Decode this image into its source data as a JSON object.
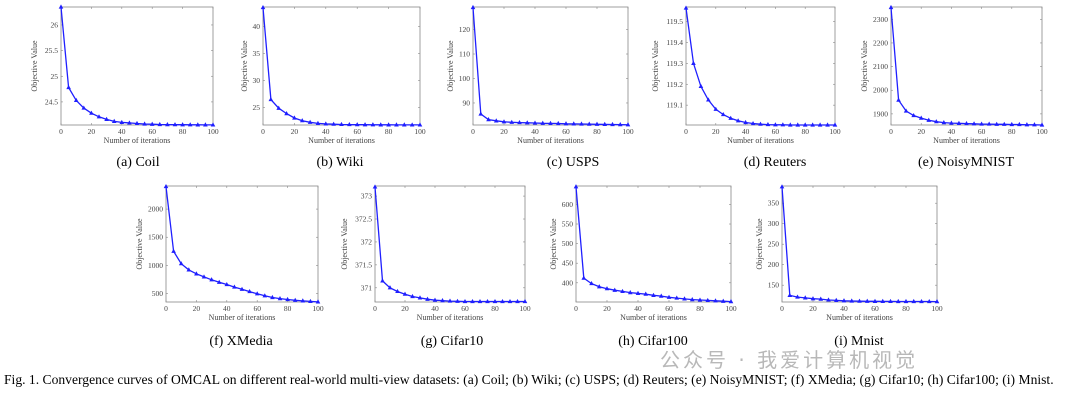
{
  "figure_caption": "Fig. 1.  Convergence curves of OMCAL on different real-world multi-view datasets: (a) Coil; (b) Wiki; (c) USPS; (d) Reuters; (e) NoisyMNIST; (f) XMedia; (g) Cifar10; (h) Cifar100; (i) Mnist.",
  "watermark": "公众号 · 我爱计算机视觉",
  "line_color": "#1f1fff",
  "chart_data": [
    {
      "type": "line",
      "caption": "(a)  Coil",
      "xlabel": "Number of iterations",
      "ylabel": "Objective Value",
      "xlim": [
        0,
        100
      ],
      "ylim": [
        24.05,
        26.35
      ],
      "xticks": [
        0,
        20,
        40,
        60,
        80,
        100
      ],
      "yticks": [
        24.5,
        25,
        25.5,
        26
      ],
      "marker": "triangle",
      "x": [
        0,
        5,
        10,
        15,
        20,
        25,
        30,
        35,
        40,
        45,
        50,
        55,
        60,
        65,
        70,
        75,
        80,
        85,
        90,
        95,
        100
      ],
      "y": [
        26.35,
        24.78,
        24.53,
        24.38,
        24.28,
        24.21,
        24.16,
        24.12,
        24.1,
        24.09,
        24.08,
        24.07,
        24.065,
        24.06,
        24.058,
        24.056,
        24.055,
        24.054,
        24.053,
        24.052,
        24.051
      ]
    },
    {
      "type": "line",
      "caption": "(b)  Wiki",
      "xlabel": "Number of iterations",
      "ylabel": "Objective Value",
      "xlim": [
        0,
        100
      ],
      "ylim": [
        21.8,
        43.6
      ],
      "xticks": [
        0,
        20,
        40,
        60,
        80,
        100
      ],
      "yticks": [
        25,
        30,
        35,
        40
      ],
      "marker": "triangle",
      "x": [
        0,
        5,
        10,
        15,
        20,
        25,
        30,
        35,
        40,
        45,
        50,
        55,
        60,
        65,
        70,
        75,
        80,
        85,
        90,
        95,
        100
      ],
      "y": [
        43.5,
        26.5,
        24.9,
        23.9,
        23.1,
        22.6,
        22.3,
        22.1,
        22.0,
        21.95,
        21.9,
        21.88,
        21.86,
        21.85,
        21.84,
        21.83,
        21.83,
        21.82,
        21.82,
        21.81,
        21.81
      ]
    },
    {
      "type": "line",
      "caption": "(c)  USPS",
      "xlabel": "Number of iterations",
      "ylabel": "Objective Value",
      "xlim": [
        0,
        100
      ],
      "ylim": [
        81,
        129.2
      ],
      "xticks": [
        0,
        20,
        40,
        60,
        80,
        100
      ],
      "yticks": [
        90,
        100,
        110,
        120
      ],
      "marker": "triangle",
      "x": [
        0,
        5,
        10,
        15,
        20,
        25,
        30,
        35,
        40,
        45,
        50,
        55,
        60,
        65,
        70,
        75,
        80,
        85,
        90,
        95,
        100
      ],
      "y": [
        129,
        85.5,
        83.2,
        82.7,
        82.3,
        82.1,
        82.0,
        81.9,
        81.8,
        81.7,
        81.65,
        81.6,
        81.5,
        81.45,
        81.4,
        81.35,
        81.3,
        81.25,
        81.2,
        81.15,
        81.1
      ]
    },
    {
      "type": "line",
      "caption": "(d)  Reuters",
      "xlabel": "Number of iterations",
      "ylabel": "Objective Value",
      "xlim": [
        0,
        100
      ],
      "ylim": [
        119.005,
        119.57
      ],
      "xticks": [
        0,
        20,
        40,
        60,
        80,
        100
      ],
      "yticks": [
        119.1,
        119.2,
        119.3,
        119.4,
        119.5
      ],
      "marker": "triangle",
      "x": [
        0,
        5,
        10,
        15,
        20,
        25,
        30,
        35,
        40,
        45,
        50,
        55,
        60,
        65,
        70,
        75,
        80,
        85,
        90,
        95,
        100
      ],
      "y": [
        119.565,
        119.3,
        119.19,
        119.125,
        119.08,
        119.055,
        119.037,
        119.025,
        119.017,
        119.012,
        119.009,
        119.007,
        119.006,
        119.006,
        119.005,
        119.005,
        119.005,
        119.005,
        119.005,
        119.005,
        119.005
      ]
    },
    {
      "type": "line",
      "caption": "(e)  NoisyMNIST",
      "xlabel": "Number of iterations",
      "ylabel": "Objective Value",
      "xlim": [
        0,
        100
      ],
      "ylim": [
        1853,
        2352
      ],
      "xticks": [
        0,
        20,
        40,
        60,
        80,
        100
      ],
      "yticks": [
        1900,
        2000,
        2100,
        2200,
        2300
      ],
      "marker": "triangle",
      "x": [
        0,
        5,
        10,
        15,
        20,
        25,
        30,
        35,
        40,
        45,
        50,
        55,
        60,
        65,
        70,
        75,
        80,
        85,
        90,
        95,
        100
      ],
      "y": [
        2350,
        1958,
        1912,
        1893,
        1882,
        1873,
        1867,
        1863,
        1861,
        1860,
        1859,
        1858,
        1857,
        1857,
        1856,
        1856,
        1855,
        1855,
        1854,
        1854,
        1853
      ]
    },
    {
      "type": "line",
      "caption": "(f)  XMedia",
      "xlabel": "Number of iterations",
      "ylabel": "Objective Value",
      "xlim": [
        0,
        100
      ],
      "ylim": [
        350,
        2410
      ],
      "xticks": [
        0,
        20,
        40,
        60,
        80,
        100
      ],
      "yticks": [
        500,
        1000,
        1500,
        2000
      ],
      "marker": "triangle",
      "x": [
        0,
        5,
        10,
        15,
        20,
        25,
        30,
        35,
        40,
        45,
        50,
        55,
        60,
        65,
        70,
        75,
        80,
        85,
        90,
        95,
        100
      ],
      "y": [
        2400,
        1250,
        1030,
        920,
        850,
        795,
        745,
        700,
        660,
        615,
        575,
        535,
        495,
        460,
        430,
        410,
        395,
        380,
        370,
        360,
        352
      ]
    },
    {
      "type": "line",
      "caption": "(g)  Cifar10",
      "xlabel": "Number of iterations",
      "ylabel": "Objective Value",
      "xlim": [
        0,
        100
      ],
      "ylim": [
        370.69,
        373.22
      ],
      "xticks": [
        0,
        20,
        40,
        60,
        80,
        100
      ],
      "yticks": [
        371,
        371.5,
        372,
        372.5,
        373
      ],
      "marker": "triangle",
      "x": [
        0,
        5,
        10,
        15,
        20,
        25,
        30,
        35,
        40,
        45,
        50,
        55,
        60,
        65,
        70,
        75,
        80,
        85,
        90,
        95,
        100
      ],
      "y": [
        373.2,
        371.15,
        371.0,
        370.92,
        370.86,
        370.81,
        370.78,
        370.75,
        370.73,
        370.72,
        370.71,
        370.705,
        370.7,
        370.7,
        370.7,
        370.7,
        370.7,
        370.7,
        370.7,
        370.7,
        370.7
      ]
    },
    {
      "type": "line",
      "caption": "(h)  Cifar100",
      "xlabel": "Number of iterations",
      "ylabel": "Objective Value",
      "xlim": [
        0,
        100
      ],
      "ylim": [
        351,
        647
      ],
      "xticks": [
        0,
        20,
        40,
        60,
        80,
        100
      ],
      "yticks": [
        400,
        450,
        500,
        550,
        600
      ],
      "marker": "triangle",
      "x": [
        0,
        5,
        10,
        15,
        20,
        25,
        30,
        35,
        40,
        45,
        50,
        55,
        60,
        65,
        70,
        75,
        80,
        85,
        90,
        95,
        100
      ],
      "y": [
        645,
        412,
        398,
        390,
        385,
        381,
        378,
        375,
        373,
        371,
        368,
        366,
        363,
        361,
        359,
        357,
        356,
        355,
        354,
        353,
        352
      ]
    },
    {
      "type": "line",
      "caption": "(i)  Mnist",
      "xlabel": "Number of iterations",
      "ylabel": "Objective Value",
      "xlim": [
        0,
        100
      ],
      "ylim": [
        109,
        392
      ],
      "xticks": [
        0,
        20,
        40,
        60,
        80,
        100
      ],
      "yticks": [
        150,
        200,
        250,
        300,
        350
      ],
      "marker": "triangle",
      "x": [
        0,
        5,
        10,
        15,
        20,
        25,
        30,
        35,
        40,
        45,
        50,
        55,
        60,
        65,
        70,
        75,
        80,
        85,
        90,
        95,
        100
      ],
      "y": [
        390,
        125,
        121,
        119,
        117,
        116,
        114,
        113,
        112,
        111.5,
        111,
        110.8,
        110.6,
        110.5,
        110.4,
        110.3,
        110.2,
        110.2,
        110.1,
        110.1,
        110
      ]
    }
  ]
}
